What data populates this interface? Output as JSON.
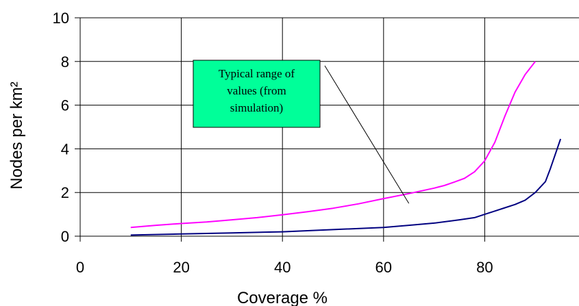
{
  "chart_data": {
    "type": "line",
    "title": "",
    "xlabel": "Coverage %",
    "ylabel": "Nodes per km²",
    "xlim": [
      0,
      100
    ],
    "ylim": [
      0,
      10
    ],
    "x_ticks": [
      "0",
      "20",
      "40",
      "60",
      "80"
    ],
    "y_ticks": [
      "0",
      "2",
      "4",
      "6",
      "8",
      "10"
    ],
    "x_tick_values": [
      0,
      20,
      40,
      60,
      80
    ],
    "y_tick_values": [
      0,
      2,
      4,
      6,
      8,
      10
    ],
    "grid": true,
    "legend": "none",
    "series": [
      {
        "color": "#ff00ff",
        "x": [
          10,
          15,
          20,
          25,
          30,
          35,
          40,
          45,
          50,
          55,
          60,
          65,
          70,
          72,
          74,
          76,
          78,
          80,
          82,
          84,
          86,
          88,
          90
        ],
        "y": [
          0.4,
          0.5,
          0.58,
          0.65,
          0.75,
          0.85,
          0.98,
          1.12,
          1.28,
          1.48,
          1.72,
          1.95,
          2.2,
          2.32,
          2.48,
          2.65,
          2.95,
          3.45,
          4.3,
          5.5,
          6.6,
          7.4,
          8.0
        ]
      },
      {
        "color": "#000080",
        "x": [
          10,
          20,
          30,
          40,
          50,
          60,
          65,
          70,
          75,
          78,
          80,
          82,
          84,
          86,
          88,
          90,
          92,
          93,
          95
        ],
        "y": [
          0.05,
          0.1,
          0.15,
          0.2,
          0.3,
          0.4,
          0.5,
          0.6,
          0.75,
          0.85,
          1.0,
          1.15,
          1.3,
          1.45,
          1.65,
          2.0,
          2.5,
          3.1,
          4.45
        ]
      }
    ],
    "annotations": [
      {
        "lines": [
          "Typical range of",
          "values (from",
          "simulation)"
        ],
        "box_color": "#00ff99",
        "arrow_to": [
          65,
          1.5
        ]
      }
    ]
  }
}
